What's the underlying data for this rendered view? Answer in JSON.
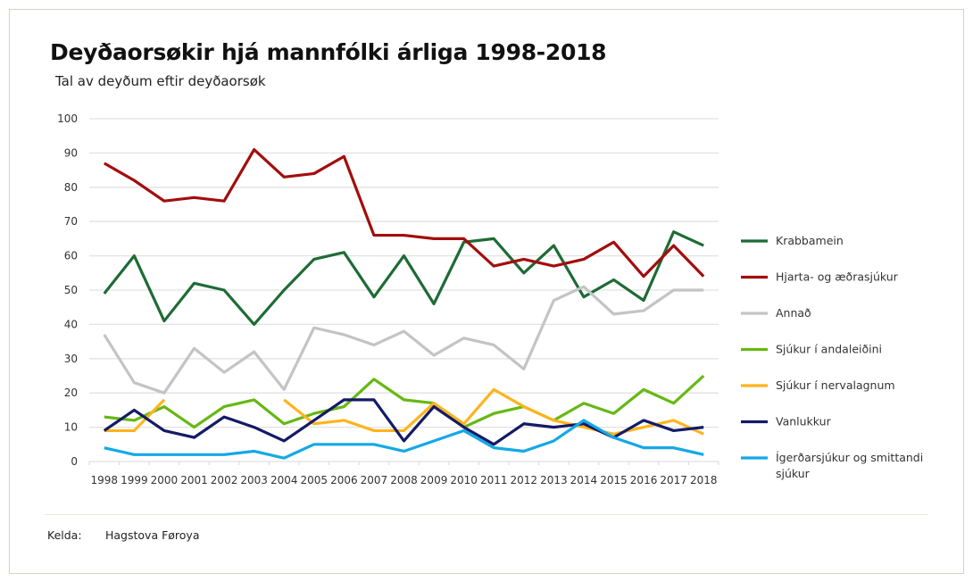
{
  "chart_data": {
    "type": "line",
    "title": "Deyðaorsøkir hjá mannfólki árliga 1998-2018",
    "subtitle": "Tal av deyðum eftir deyðaorsøk",
    "xlabel": "",
    "ylabel": "",
    "ylim": [
      0,
      100
    ],
    "yticks": [
      0,
      10,
      20,
      30,
      40,
      50,
      60,
      70,
      80,
      90,
      100
    ],
    "grid": true,
    "legend_position": "right",
    "categories": [
      "1998",
      "1999",
      "2000",
      "2001",
      "2002",
      "2003",
      "2004",
      "2005",
      "2006",
      "2007",
      "2008",
      "2009",
      "2010",
      "2011",
      "2012",
      "2013",
      "2014",
      "2015",
      "2016",
      "2017",
      "2018"
    ],
    "series": [
      {
        "name": "Krabbamein",
        "color": "#1e6b35",
        "values": [
          49,
          60,
          41,
          52,
          50,
          40,
          50,
          59,
          61,
          48,
          60,
          46,
          64,
          65,
          55,
          63,
          48,
          53,
          47,
          67,
          63
        ]
      },
      {
        "name": "Hjarta- og æðrasjúkur",
        "color": "#a30d0d",
        "values": [
          87,
          82,
          76,
          77,
          76,
          91,
          83,
          84,
          89,
          66,
          66,
          65,
          65,
          57,
          59,
          57,
          59,
          64,
          54,
          63,
          54
        ]
      },
      {
        "name": "Annað",
        "color": "#c4c4c4",
        "values": [
          37,
          23,
          20,
          33,
          26,
          32,
          21,
          39,
          37,
          34,
          38,
          31,
          36,
          34,
          27,
          47,
          51,
          43,
          44,
          50,
          50
        ]
      },
      {
        "name": "Sjúkur í andaleiðini",
        "color": "#66b814",
        "values": [
          13,
          12,
          16,
          10,
          16,
          18,
          11,
          14,
          16,
          24,
          18,
          17,
          10,
          14,
          16,
          12,
          17,
          14,
          21,
          17,
          25
        ]
      },
      {
        "name": "Sjúkur í nervalagnum",
        "color": "#ffb41e",
        "values": [
          9,
          9,
          18,
          null,
          null,
          null,
          18,
          11,
          12,
          9,
          9,
          17,
          11,
          21,
          16,
          12,
          10,
          8,
          10,
          12,
          8
        ]
      },
      {
        "name": "Vanlukkur",
        "color": "#141a66",
        "values": [
          9,
          15,
          9,
          7,
          13,
          10,
          6,
          12,
          18,
          18,
          6,
          16,
          10,
          5,
          11,
          10,
          11,
          7,
          12,
          9,
          10
        ]
      },
      {
        "name": "Ígerðarsjúkur og smittandi sjúkur",
        "color": "#14a8e6",
        "values": [
          4,
          2,
          2,
          2,
          2,
          3,
          1,
          5,
          5,
          5,
          3,
          6,
          9,
          4,
          3,
          6,
          12,
          7,
          4,
          4,
          2
        ]
      }
    ]
  },
  "footer": {
    "source_label": "Kelda:",
    "source_value": "Hagstova Føroya"
  }
}
